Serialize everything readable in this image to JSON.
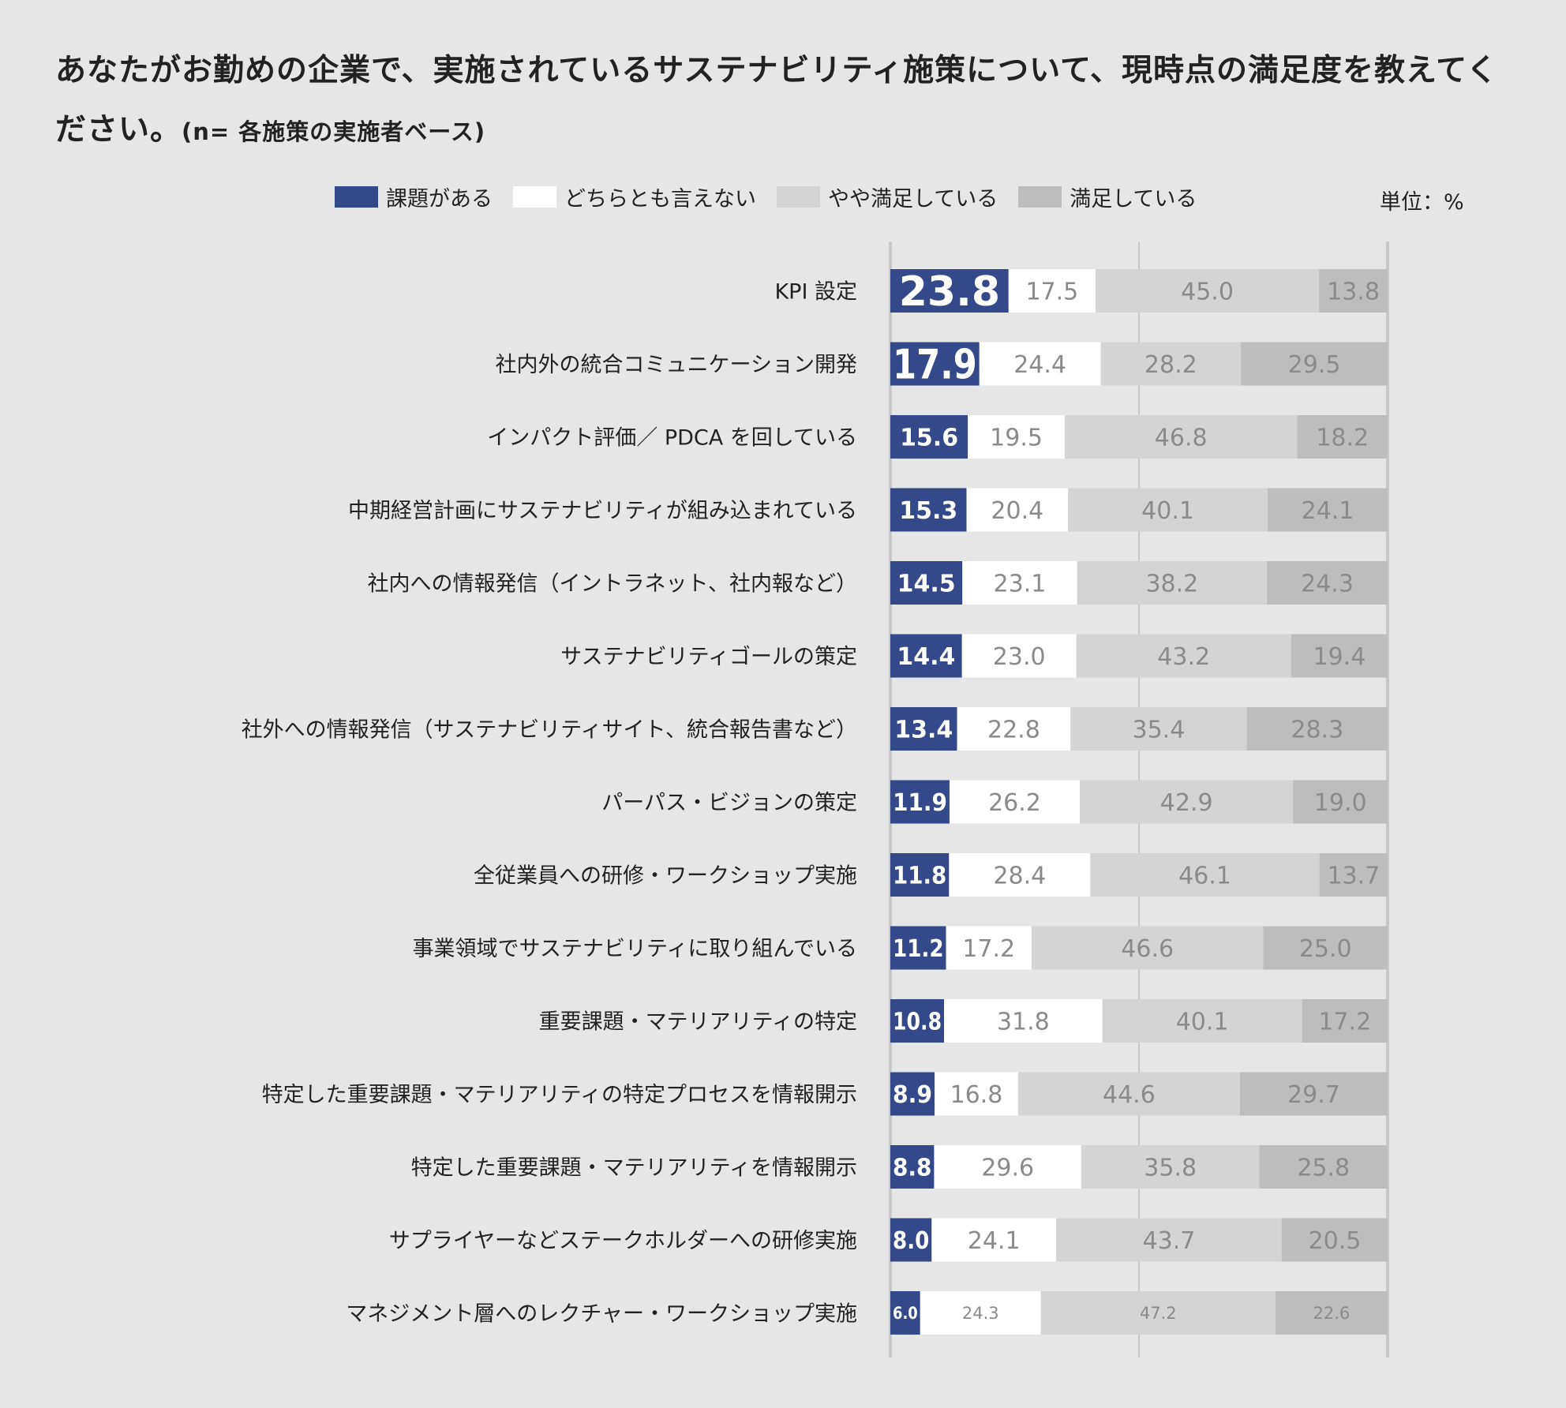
{
  "title": {
    "main": "あなたがお勤めの企業で、実施されているサステナビリティ施策について、現時点の満足度を教えてください。",
    "note": "(n= 各施策の実施者ベース)"
  },
  "unit_label": "単位：%",
  "colors": {
    "background": "#e6e6e6",
    "issue": "#35498a",
    "neutral": "#ffffff",
    "somewhat_satisfied": "#d4d4d4",
    "satisfied": "#bdbdbd",
    "label_dark_bg": "#ffffff",
    "label_light_bg": "#8a8a8a",
    "gridline": "#c8c8c8"
  },
  "chart_data": {
    "type": "bar",
    "orientation": "horizontal",
    "stacked": true,
    "xlim": [
      0,
      100
    ],
    "grid": true,
    "legend_position": "top",
    "series": [
      {
        "name": "課題がある",
        "color_key": "issue"
      },
      {
        "name": "どちらとも言えない",
        "color_key": "neutral"
      },
      {
        "name": "やや満足している",
        "color_key": "somewhat_satisfied"
      },
      {
        "name": "満足している",
        "color_key": "satisfied"
      }
    ],
    "categories": [
      "KPI 設定",
      "社内外の統合コミュニケーション開発",
      "インパクト評価／ PDCA を回している",
      "中期経営計画にサステナビリティが組み込まれている",
      "社内への情報発信（イントラネット、社内報など）",
      "サステナビリティゴールの策定",
      "社外への情報発信（サステナビリティサイト、統合報告書など）",
      "パーパス・ビジョンの策定",
      "全従業員への研修・ワークショップ実施",
      "事業領域でサステナビリティに取り組んでいる",
      "重要課題・マテリアリティの特定",
      "特定した重要課題・マテリアリティの特定プロセスを情報開示",
      "特定した重要課題・マテリアリティを情報開示",
      "サプライヤーなどステークホルダーへの研修実施",
      "マネジメント層へのレクチャー・ワークショップ実施"
    ],
    "values": [
      [
        23.8,
        17.5,
        45.0,
        13.8
      ],
      [
        17.9,
        24.4,
        28.2,
        29.5
      ],
      [
        15.6,
        19.5,
        46.8,
        18.2
      ],
      [
        15.3,
        20.4,
        40.1,
        24.1
      ],
      [
        14.5,
        23.1,
        38.2,
        24.3
      ],
      [
        14.4,
        23.0,
        43.2,
        19.4
      ],
      [
        13.4,
        22.8,
        35.4,
        28.3
      ],
      [
        11.9,
        26.2,
        42.9,
        19.0
      ],
      [
        11.8,
        28.4,
        46.1,
        13.7
      ],
      [
        11.2,
        17.2,
        46.6,
        25.0
      ],
      [
        10.8,
        31.8,
        40.1,
        17.2
      ],
      [
        8.9,
        16.8,
        44.6,
        29.7
      ],
      [
        8.8,
        29.6,
        35.8,
        25.8
      ],
      [
        8.0,
        24.1,
        43.7,
        20.5
      ],
      [
        6.0,
        24.3,
        47.2,
        22.6
      ]
    ],
    "value_labels": [
      [
        "23.8",
        "17.5",
        "45.0",
        "13.8"
      ],
      [
        "17.9",
        "24.4",
        "28.2",
        "29.5"
      ],
      [
        "15.6",
        "19.5",
        "46.8",
        "18.2"
      ],
      [
        "15.3",
        "20.4",
        "40.1",
        "24.1"
      ],
      [
        "14.5",
        "23.1",
        "38.2",
        "24.3"
      ],
      [
        "14.4",
        "23.0",
        "43.2",
        "19.4"
      ],
      [
        "13.4",
        "22.8",
        "35.4",
        "28.3"
      ],
      [
        "11.9",
        "26.2",
        "42.9",
        "19.0"
      ],
      [
        "11.8",
        "28.4",
        "46.1",
        "13.7"
      ],
      [
        "11.2",
        "17.2",
        "46.6",
        "25.0"
      ],
      [
        "10.8",
        "31.8",
        "40.1",
        "17.2"
      ],
      [
        "8.9",
        "16.8",
        "44.6",
        "29.7"
      ],
      [
        "8.8",
        "29.6",
        "35.8",
        "25.8"
      ],
      [
        "8.0",
        "24.1",
        "43.7",
        "20.5"
      ],
      [
        "6.0",
        "24.3",
        "47.2",
        "22.6"
      ]
    ]
  }
}
